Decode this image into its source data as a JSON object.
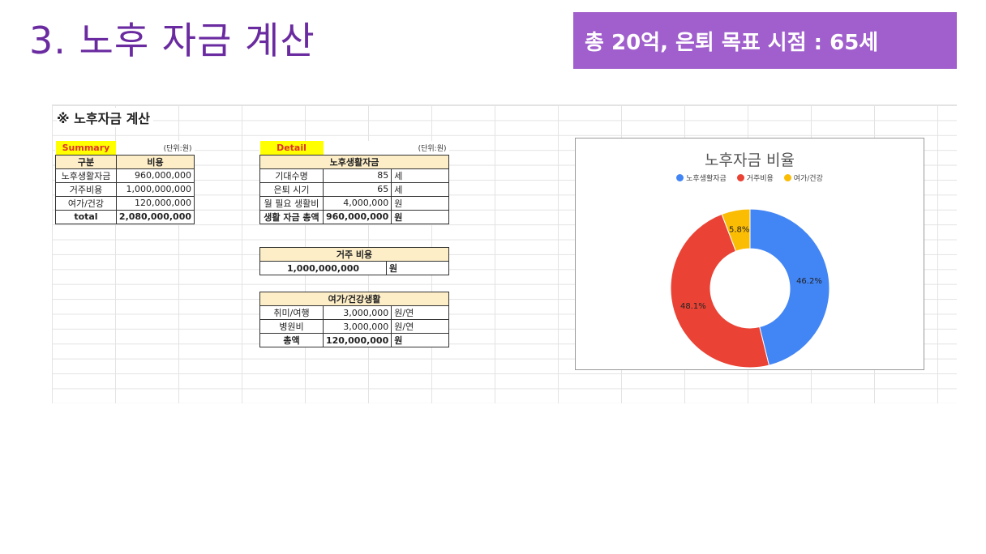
{
  "slide": {
    "title": "3. 노후 자금 계산",
    "banner": "총 20억, 은퇴 목표 시점  : 65세"
  },
  "sheet": {
    "title": "※ 노후자금 계산",
    "summary": {
      "label": "Summary",
      "unit": "(단위:원)",
      "col_headers": [
        "구분",
        "비용"
      ],
      "rows": [
        {
          "name": "노후생활자금",
          "value": "960,000,000"
        },
        {
          "name": "거주비용",
          "value": "1,000,000,000"
        },
        {
          "name": "여가/건강",
          "value": "120,000,000"
        },
        {
          "name": "total",
          "value": "2,080,000,000"
        }
      ]
    },
    "detail": {
      "label": "Detail",
      "unit": "(단위:원)",
      "living": {
        "header": "노후생활자금",
        "rows": [
          {
            "name": "기대수명",
            "value": "85",
            "unit": "세"
          },
          {
            "name": "은퇴 시기",
            "value": "65",
            "unit": "세"
          },
          {
            "name": "월 필요 생활비",
            "value": "4,000,000",
            "unit": "원"
          },
          {
            "name": "생활 자금 총액",
            "value": "960,000,000",
            "unit": "원"
          }
        ]
      },
      "housing": {
        "header": "거주 비용",
        "value": "1,000,000,000",
        "unit": "원"
      },
      "leisure": {
        "header": "여가/건강생활",
        "rows": [
          {
            "name": "취미/여행",
            "value": "3,000,000",
            "unit": "원/연"
          },
          {
            "name": "병원비",
            "value": "3,000,000",
            "unit": "원/연"
          },
          {
            "name": "총액",
            "value": "120,000,000",
            "unit": "원"
          }
        ]
      }
    }
  },
  "chart_data": {
    "type": "pie",
    "title": "노후자금 비율",
    "donut": true,
    "legend_position": "top",
    "categories": [
      "노후생활자금",
      "거주비용",
      "여가/건강"
    ],
    "values": [
      46.2,
      48.1,
      5.8
    ],
    "labels": [
      "46.2%",
      "48.1%",
      "5.8%"
    ],
    "colors": [
      "#4285f4",
      "#ea4335",
      "#fbbc04"
    ]
  }
}
